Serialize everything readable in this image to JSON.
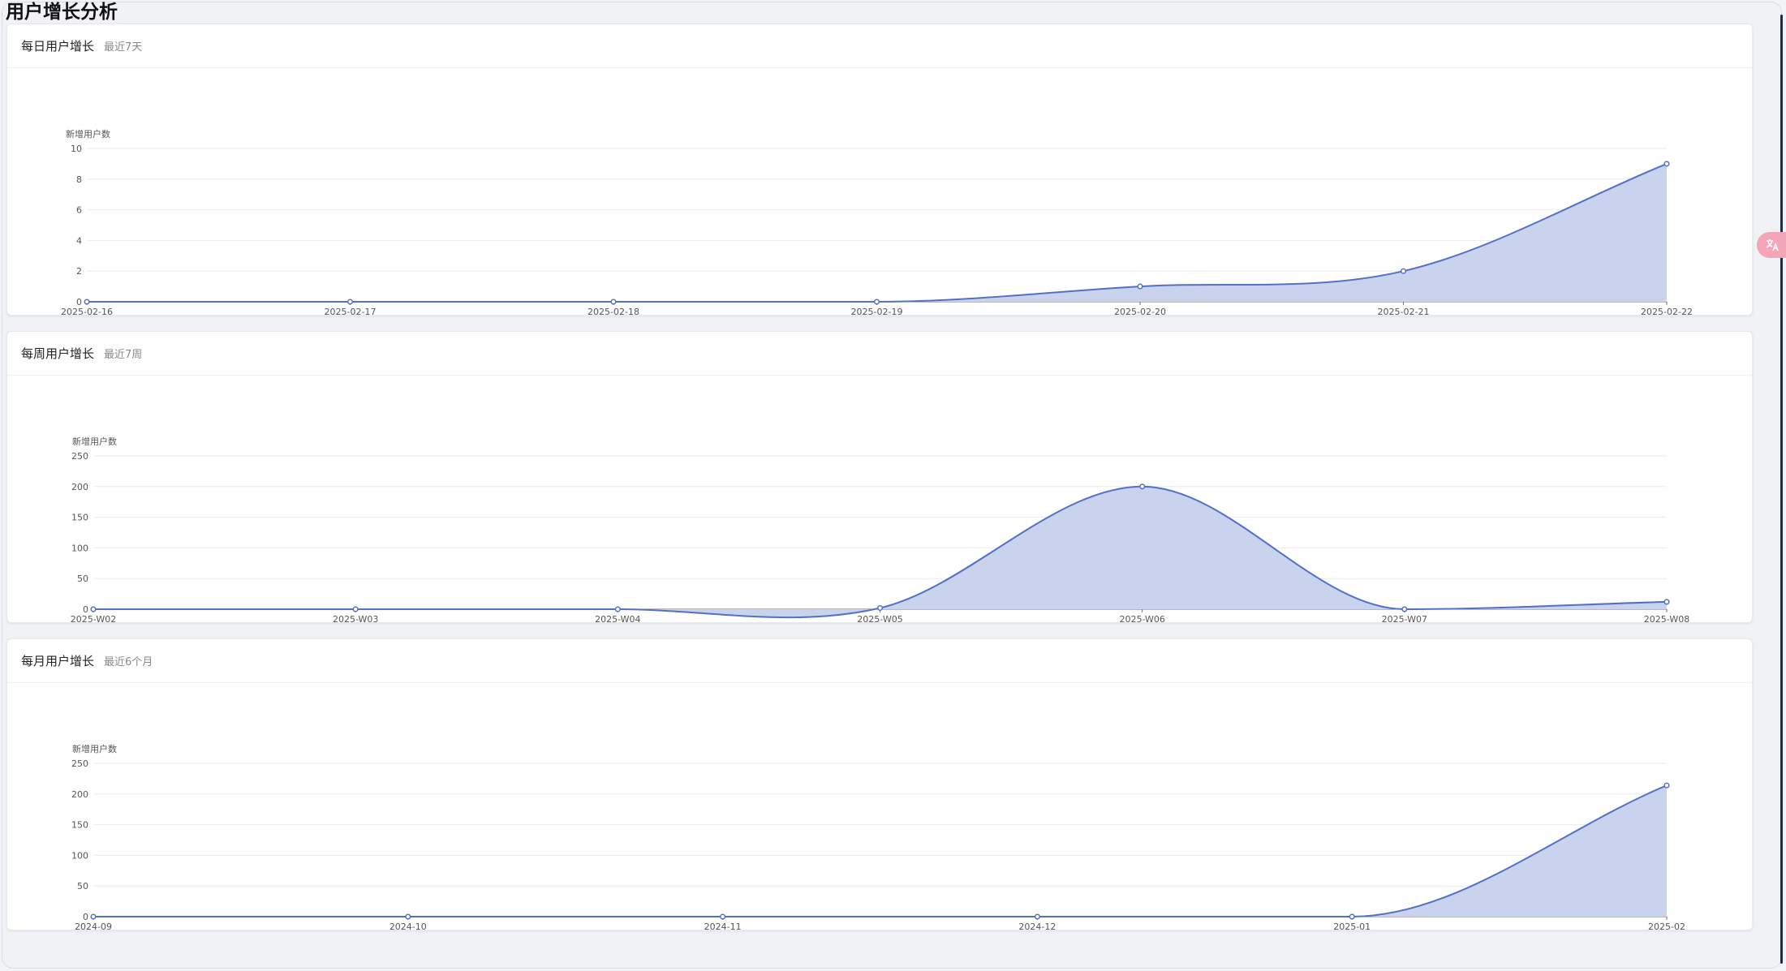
{
  "page": {
    "title": "用户增长分析"
  },
  "colors": {
    "line": "#5470c6",
    "area": "#c9d3ee",
    "grid": "#e9ebef",
    "axis": "#6e7079",
    "text": "#555"
  },
  "icons": {
    "translate": "translate-icon"
  },
  "cards": [
    {
      "title": "每日用户增长",
      "subtitle": "最近7天"
    },
    {
      "title": "每周用户增长",
      "subtitle": "最近7周"
    },
    {
      "title": "每月用户增长",
      "subtitle": "最近6个月"
    }
  ],
  "chart_data": [
    {
      "type": "area",
      "title": "每日用户增长",
      "ylabel": "新增用户数",
      "categories": [
        "2025-02-16",
        "2025-02-17",
        "2025-02-18",
        "2025-02-19",
        "2025-02-20",
        "2025-02-21",
        "2025-02-22"
      ],
      "values": [
        0,
        0,
        0,
        0,
        1,
        2,
        9
      ],
      "ylim": [
        0,
        10
      ],
      "yticks": [
        0,
        2,
        4,
        6,
        8,
        10
      ],
      "grid": true,
      "smooth": true
    },
    {
      "type": "area",
      "title": "每周用户增长",
      "ylabel": "新增用户数",
      "categories": [
        "2025-W02",
        "2025-W03",
        "2025-W04",
        "2025-W05",
        "2025-W06",
        "2025-W07",
        "2025-W08"
      ],
      "values": [
        0,
        0,
        0,
        2,
        200,
        0,
        12
      ],
      "ylim": [
        0,
        250
      ],
      "yticks": [
        0,
        50,
        100,
        150,
        200,
        250
      ],
      "grid": true,
      "smooth": true
    },
    {
      "type": "area",
      "title": "每月用户增长",
      "ylabel": "新增用户数",
      "categories": [
        "2024-09",
        "2024-10",
        "2024-11",
        "2024-12",
        "2025-01",
        "2025-02"
      ],
      "values": [
        0,
        0,
        0,
        0,
        0,
        214
      ],
      "ylim": [
        0,
        250
      ],
      "yticks": [
        0,
        50,
        100,
        150,
        200,
        250
      ],
      "grid": true,
      "smooth": true
    }
  ]
}
